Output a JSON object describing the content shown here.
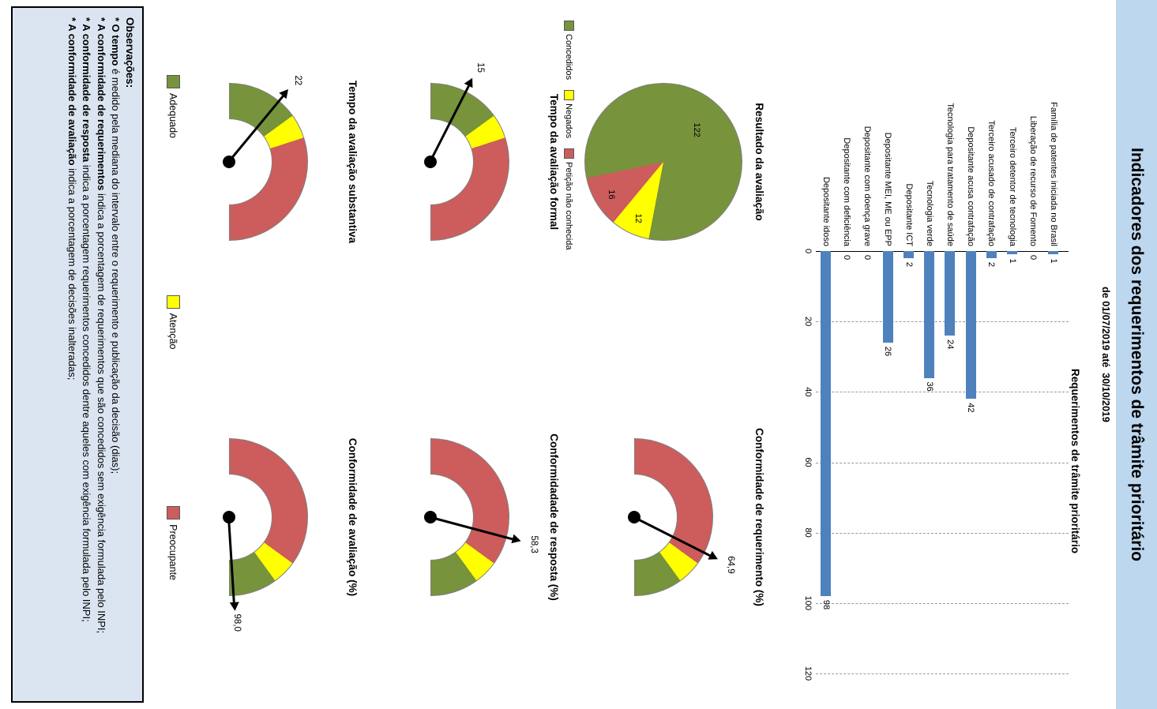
{
  "title": "Indicadores dos requerimentos de trâmite prioritário",
  "subtitle": "de 01/07/2019 até  30/10/2019",
  "colors": {
    "band": "#bdd7ee",
    "bar": "#4f81bd",
    "green": "#77933c",
    "yellow": "#ffff00",
    "red": "#cd5c5c",
    "box_bg": "#dbe5f1"
  },
  "chart_data": [
    {
      "type": "bar",
      "title": "Requerimentos de trâmite prioritário",
      "orientation": "horizontal",
      "categories": [
        "Família de patentes iniciada no Brasil",
        "Liberação de recurso de Fomento",
        "Terceiro detentor de tecnologia",
        "Terceiro acusado de contrafação",
        "Depositante acusa contrafação",
        "Tecnologia para tratamento de saúde",
        "Tecnologia verde",
        "Depositante ICT",
        "Depositante MEI, ME ou EPP",
        "Depositante com doença grave",
        "Depositante com deficiência",
        "Depositante idoso"
      ],
      "values": [
        1,
        0,
        1,
        2,
        42,
        24,
        36,
        2,
        26,
        0,
        0,
        98
      ],
      "xlim": [
        0,
        120
      ],
      "ticks": [
        0,
        20,
        40,
        60,
        80,
        100,
        120
      ],
      "grid": true,
      "bar_color": "#4f81bd"
    },
    {
      "type": "pie",
      "title": "Resultado da avaliação",
      "start_angle_deg": 168,
      "slices": [
        {
          "label": "Concedidos",
          "value": 122,
          "color": "#77933c"
        },
        {
          "label": "Negados",
          "value": 12,
          "color": "#ffff00"
        },
        {
          "label": "Petição não conhecida",
          "value": 16,
          "color": "#cd5c5c"
        }
      ],
      "legend_position": "bottom"
    },
    {
      "type": "gauge",
      "title": "Conformidade de requerimento (%)",
      "value": 64.9,
      "value_label": "64,9",
      "max": 100,
      "zones": [
        {
          "from": 0,
          "to": 70,
          "color": "#cd5c5c",
          "label": "Preocupante"
        },
        {
          "from": 70,
          "to": 80,
          "color": "#ffff00",
          "label": "Atenção"
        },
        {
          "from": 80,
          "to": 100,
          "color": "#77933c",
          "label": "Adequado"
        }
      ]
    },
    {
      "type": "gauge",
      "title": "Tempo da avaliação formal",
      "value": 15,
      "value_label": "15",
      "max": 100,
      "zones": [
        {
          "from": 0,
          "to": 30,
          "color": "#77933c",
          "label": "Adequado"
        },
        {
          "from": 30,
          "to": 40,
          "color": "#ffff00",
          "label": "Atenção"
        },
        {
          "from": 40,
          "to": 100,
          "color": "#cd5c5c",
          "label": "Preocupante"
        }
      ]
    },
    {
      "type": "gauge",
      "title": "Conformidadade de resposta (%)",
      "value": 58.3,
      "value_label": "58,3",
      "max": 100,
      "zones": [
        {
          "from": 0,
          "to": 70,
          "color": "#cd5c5c",
          "label": "Preocupante"
        },
        {
          "from": 70,
          "to": 80,
          "color": "#ffff00",
          "label": "Atenção"
        },
        {
          "from": 80,
          "to": 100,
          "color": "#77933c",
          "label": "Adequado"
        }
      ]
    },
    {
      "type": "gauge",
      "title": "Tempo da avaliação substantiva",
      "value": 22,
      "value_label": "22",
      "max": 100,
      "zones": [
        {
          "from": 0,
          "to": 30,
          "color": "#77933c",
          "label": "Adequado"
        },
        {
          "from": 30,
          "to": 40,
          "color": "#ffff00",
          "label": "Atenção"
        },
        {
          "from": 40,
          "to": 100,
          "color": "#cd5c5c",
          "label": "Preocupante"
        }
      ]
    },
    {
      "type": "gauge",
      "title": "Conformidade de avaliação (%)",
      "value": 98.0,
      "value_label": "98,0",
      "max": 100,
      "zones": [
        {
          "from": 0,
          "to": 70,
          "color": "#cd5c5c",
          "label": "Preocupante"
        },
        {
          "from": 70,
          "to": 80,
          "color": "#ffff00",
          "label": "Atenção"
        },
        {
          "from": 80,
          "to": 100,
          "color": "#77933c",
          "label": "Adequado"
        }
      ]
    }
  ],
  "gauge_legend": [
    {
      "label": "Adequado",
      "color": "#77933c"
    },
    {
      "label": "Atenção",
      "color": "#ffff00"
    },
    {
      "label": "Preocupante",
      "color": "#cd5c5c"
    }
  ],
  "observations": {
    "heading": "Observações:",
    "items": [
      {
        "lead": "O tempo",
        "rest": " é medido pela mediana do intervalo entre o requerimento e publicação da decisão (dias);"
      },
      {
        "lead": "A conformidade de requerimentos",
        "rest": " indica a porcentagem de requerimentos que são concedidos sem exigência formulada pelo INPI;"
      },
      {
        "lead": "A conformidade de resposta",
        "rest": " indica a porcentagem requerimentos concedidos dentre aqueles com exigência formulada pelo INPI;"
      },
      {
        "lead": "A conformidade de avaliação",
        "rest": " indica a porcentagem de decisões inalteradas;"
      }
    ]
  }
}
